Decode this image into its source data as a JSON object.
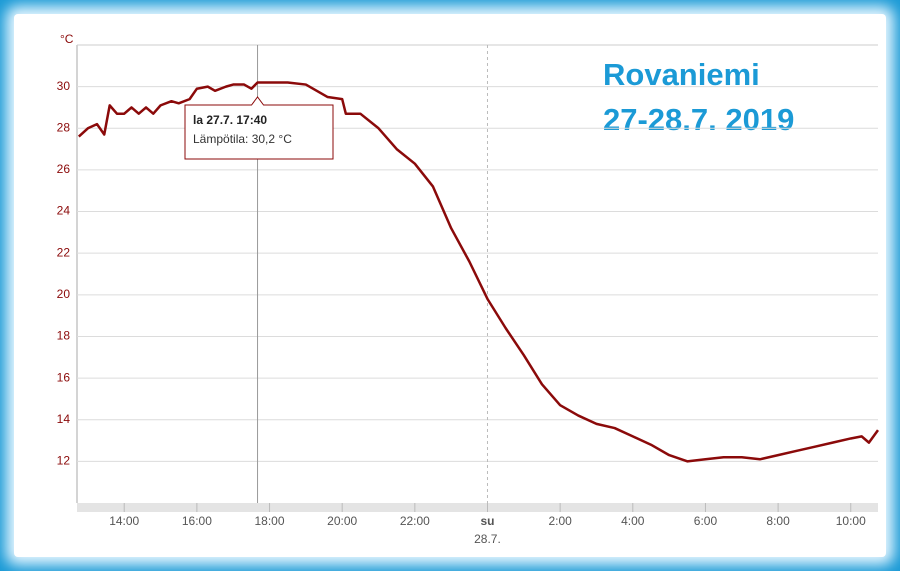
{
  "chart_data": {
    "type": "line",
    "y_unit": "°C",
    "annotation": [
      "Rovaniemi",
      "27-28.7. 2019"
    ],
    "x": [
      12.75,
      13.0,
      13.25,
      13.45,
      13.6,
      13.8,
      14.0,
      14.2,
      14.4,
      14.6,
      14.8,
      15.0,
      15.3,
      15.5,
      15.8,
      16.0,
      16.3,
      16.5,
      16.8,
      17.0,
      17.3,
      17.5,
      17.67,
      18.0,
      18.5,
      19.0,
      19.3,
      19.6,
      20.0,
      20.1,
      20.5,
      21.0,
      21.5,
      22.0,
      22.5,
      23.0,
      23.5,
      24.0,
      24.5,
      25.0,
      25.5,
      26.0,
      26.5,
      27.0,
      27.5,
      28.0,
      28.5,
      29.0,
      29.5,
      30.0,
      30.5,
      31.0,
      31.5,
      32.0,
      32.5,
      33.0,
      33.5,
      34.0,
      34.3,
      34.5,
      34.75
    ],
    "series": [
      {
        "color": "#8b0a0a",
        "values": [
          27.6,
          28.0,
          28.2,
          27.7,
          29.1,
          28.7,
          28.7,
          29.0,
          28.7,
          29.0,
          28.7,
          29.1,
          29.3,
          29.2,
          29.4,
          29.9,
          30.0,
          29.8,
          30.0,
          30.1,
          30.1,
          29.9,
          30.2,
          30.2,
          30.2,
          30.1,
          29.8,
          29.5,
          29.4,
          28.7,
          28.7,
          28.0,
          27.0,
          26.3,
          25.2,
          23.2,
          21.6,
          19.8,
          18.4,
          17.1,
          15.7,
          14.7,
          14.2,
          13.8,
          13.6,
          13.2,
          12.8,
          12.3,
          12.0,
          12.1,
          12.2,
          12.2,
          12.1,
          12.3,
          12.5,
          12.7,
          12.9,
          13.1,
          13.2,
          12.9,
          13.5
        ]
      }
    ],
    "xlim": [
      12.7,
      34.75
    ],
    "xticks": [
      {
        "value": 14,
        "label": "14:00"
      },
      {
        "value": 16,
        "label": "16:00"
      },
      {
        "value": 18,
        "label": "18:00"
      },
      {
        "value": 20,
        "label": "20:00"
      },
      {
        "value": 22,
        "label": "22:00"
      },
      {
        "value": 24,
        "label": "su"
      },
      {
        "value": 26,
        "label": "2:00"
      },
      {
        "value": 28,
        "label": "4:00"
      },
      {
        "value": 30,
        "label": "6:00"
      },
      {
        "value": 32,
        "label": "8:00"
      },
      {
        "value": 34,
        "label": "10:00"
      }
    ],
    "x_sublabel": "28.7.",
    "ylim": [
      10,
      32
    ],
    "yticks": [
      12,
      14,
      16,
      18,
      20,
      22,
      24,
      26,
      28,
      30
    ],
    "grid": true,
    "tooltip": {
      "x": 17.67,
      "title": "la 27.7. 17:40",
      "text": "Lämpötila: 30,2 °C"
    }
  }
}
